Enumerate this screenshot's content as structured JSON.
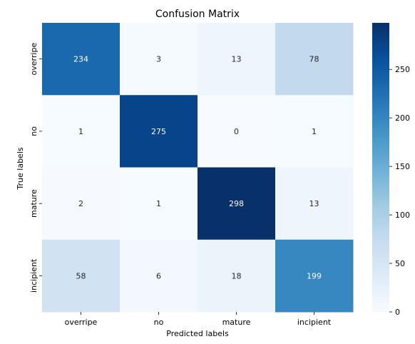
{
  "chart_data": {
    "type": "heatmap",
    "title": "Confusion Matrix",
    "xlabel": "Predicted labels",
    "ylabel": "True labels",
    "x_categories": [
      "overripe",
      "no",
      "mature",
      "incipient"
    ],
    "y_categories": [
      "overripe",
      "no",
      "mature",
      "incipient"
    ],
    "values": [
      [
        234,
        3,
        13,
        78
      ],
      [
        1,
        275,
        0,
        1
      ],
      [
        2,
        1,
        298,
        13
      ],
      [
        58,
        6,
        18,
        199
      ]
    ],
    "colormap": "Blues",
    "color_min": 0,
    "color_max": 298,
    "colorbar_ticks": [
      0,
      50,
      100,
      150,
      200,
      250
    ],
    "low_text_color": "#262626",
    "high_text_color": "#ffffff"
  }
}
